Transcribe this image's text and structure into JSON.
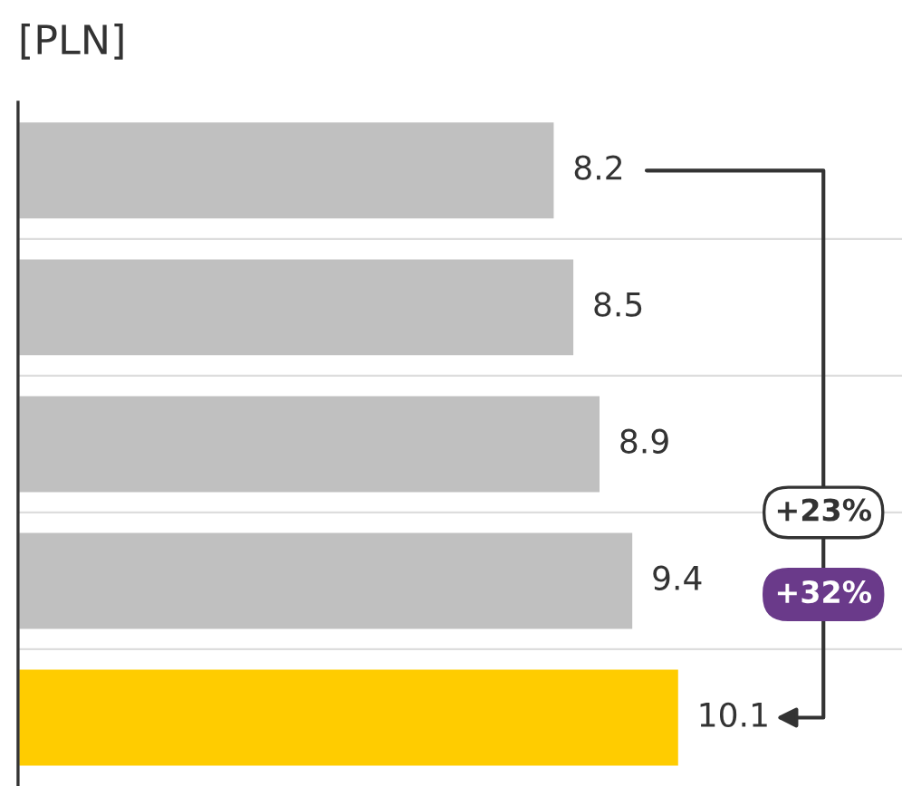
{
  "chart_data": {
    "type": "bar",
    "orientation": "horizontal",
    "title": "[PLN]",
    "categories": [
      null,
      null,
      null,
      null,
      null
    ],
    "values": [
      8.2,
      8.5,
      8.9,
      9.4,
      10.1
    ],
    "colors": [
      "#c0c0c0",
      "#c0c0c0",
      "#c0c0c0",
      "#c0c0c0",
      "#ffcc00"
    ],
    "xlim": [
      0,
      13.5
    ],
    "data_labels": true,
    "annotations": [
      "+23%",
      "+32%"
    ]
  }
}
